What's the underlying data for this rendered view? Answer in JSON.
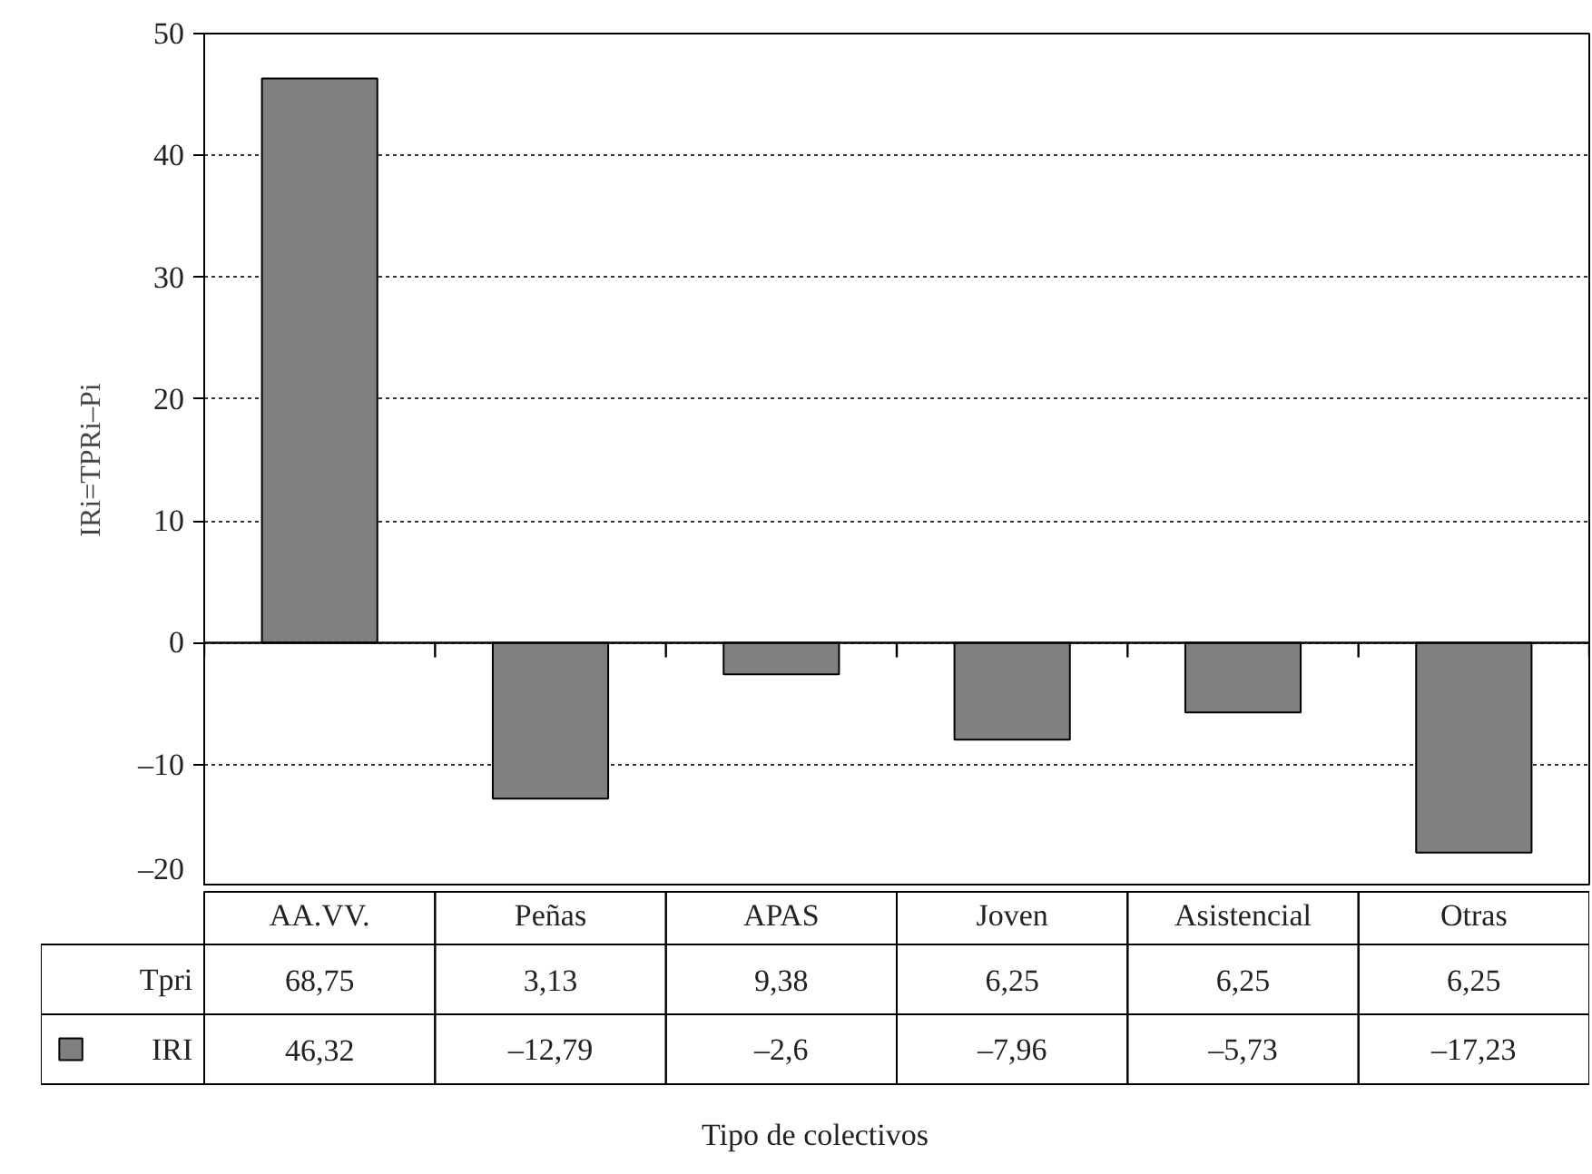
{
  "chart_data": {
    "type": "bar",
    "ylabel": "IRi=TPRi–Pi",
    "categories": [
      "AA.VV.",
      "Peñas",
      "APAS",
      "Joven",
      "Asistencial",
      "Otras"
    ],
    "series": [
      {
        "name": "IRI",
        "color": "#808080",
        "values": [
          46.32,
          -12.79,
          -2.6,
          -7.96,
          -5.73,
          -17.23
        ],
        "value_labels": [
          "46,32",
          "–12,79",
          "–2,6",
          "–7,96",
          "–5,73",
          "–17,23"
        ]
      }
    ],
    "annotations": [
      "Tipo de colectivos",
      "Tpri",
      "68,75",
      "3,13",
      "9,38",
      "6,25",
      "6,25",
      "6,25"
    ],
    "ylim": [
      -20,
      50
    ],
    "yticks": [
      {
        "value": -20,
        "label": "–20"
      },
      {
        "value": -10,
        "label": "–10"
      },
      0,
      10,
      20,
      30,
      40,
      50
    ],
    "grid": "y"
  }
}
